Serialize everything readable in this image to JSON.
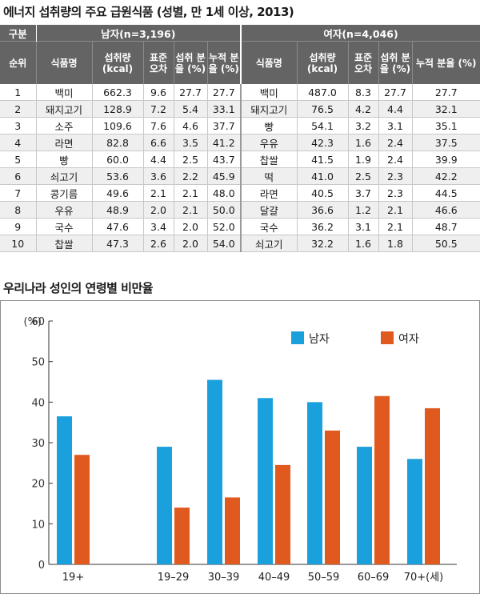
{
  "table_title": "에너지 섭취량의 주요 급원식품 (성별, 만 1세 이상, 2013)",
  "table": {
    "group_label": "구분",
    "male_label": "남자(n=3,196)",
    "female_label": "여자(n=4,046)",
    "columns": {
      "rank": "순위",
      "food": "식품명",
      "intake": "섭취량 (kcal)",
      "se": "표준 오차",
      "share": "섭취 분율 (%)",
      "cumulative": "누적 분율 (%)"
    },
    "rows": [
      {
        "rank": "1",
        "m_food": "백미",
        "m_intake": "662.3",
        "m_se": "9.6",
        "m_share": "27.7",
        "m_cum": "27.7",
        "f_food": "백미",
        "f_intake": "487.0",
        "f_se": "8.3",
        "f_share": "27.7",
        "f_cum": "27.7"
      },
      {
        "rank": "2",
        "m_food": "돼지고기",
        "m_intake": "128.9",
        "m_se": "7.2",
        "m_share": "5.4",
        "m_cum": "33.1",
        "f_food": "돼지고기",
        "f_intake": "76.5",
        "f_se": "4.2",
        "f_share": "4.4",
        "f_cum": "32.1"
      },
      {
        "rank": "3",
        "m_food": "소주",
        "m_intake": "109.6",
        "m_se": "7.6",
        "m_share": "4.6",
        "m_cum": "37.7",
        "f_food": "빵",
        "f_intake": "54.1",
        "f_se": "3.2",
        "f_share": "3.1",
        "f_cum": "35.1"
      },
      {
        "rank": "4",
        "m_food": "라면",
        "m_intake": "82.8",
        "m_se": "6.6",
        "m_share": "3.5",
        "m_cum": "41.2",
        "f_food": "우유",
        "f_intake": "42.3",
        "f_se": "1.6",
        "f_share": "2.4",
        "f_cum": "37.5"
      },
      {
        "rank": "5",
        "m_food": "빵",
        "m_intake": "60.0",
        "m_se": "4.4",
        "m_share": "2.5",
        "m_cum": "43.7",
        "f_food": "찹쌀",
        "f_intake": "41.5",
        "f_se": "1.9",
        "f_share": "2.4",
        "f_cum": "39.9"
      },
      {
        "rank": "6",
        "m_food": "쇠고기",
        "m_intake": "53.6",
        "m_se": "3.6",
        "m_share": "2.2",
        "m_cum": "45.9",
        "f_food": "떡",
        "f_intake": "41.0",
        "f_se": "2.5",
        "f_share": "2.3",
        "f_cum": "42.2"
      },
      {
        "rank": "7",
        "m_food": "콩기름",
        "m_intake": "49.6",
        "m_se": "2.1",
        "m_share": "2.1",
        "m_cum": "48.0",
        "f_food": "라면",
        "f_intake": "40.5",
        "f_se": "3.7",
        "f_share": "2.3",
        "f_cum": "44.5"
      },
      {
        "rank": "8",
        "m_food": "우유",
        "m_intake": "48.9",
        "m_se": "2.0",
        "m_share": "2.1",
        "m_cum": "50.0",
        "f_food": "달걀",
        "f_intake": "36.6",
        "f_se": "1.2",
        "f_share": "2.1",
        "f_cum": "46.6"
      },
      {
        "rank": "9",
        "m_food": "국수",
        "m_intake": "47.6",
        "m_se": "3.4",
        "m_share": "2.0",
        "m_cum": "52.0",
        "f_food": "국수",
        "f_intake": "36.2",
        "f_se": "3.1",
        "f_share": "2.1",
        "f_cum": "48.7"
      },
      {
        "rank": "10",
        "m_food": "찹쌀",
        "m_intake": "47.3",
        "m_se": "2.6",
        "m_share": "2.0",
        "m_cum": "54.0",
        "f_food": "쇠고기",
        "f_intake": "32.2",
        "f_se": "1.6",
        "f_share": "1.8",
        "f_cum": "50.5"
      }
    ]
  },
  "chart_title": "우리나라 성인의 연령별 비만율",
  "chart_data": {
    "type": "bar",
    "title": "우리나라 성인의 연령별 비만율",
    "ylabel": "(%)",
    "ylim": [
      0,
      60
    ],
    "yticks": [
      0,
      10,
      20,
      30,
      40,
      50,
      60
    ],
    "categories": [
      "19+",
      "19–29",
      "30–39",
      "40–49",
      "50–59",
      "60–69",
      "70+(세)"
    ],
    "series": [
      {
        "name": "남자",
        "color": "#1aa0dc",
        "values": [
          36.5,
          29.0,
          45.5,
          41.0,
          40.0,
          29.0,
          26.0
        ]
      },
      {
        "name": "여자",
        "color": "#e05a1f",
        "values": [
          27.0,
          14.0,
          16.5,
          24.5,
          33.0,
          41.5,
          38.5
        ]
      }
    ],
    "legend": "top-right",
    "grid": false
  }
}
